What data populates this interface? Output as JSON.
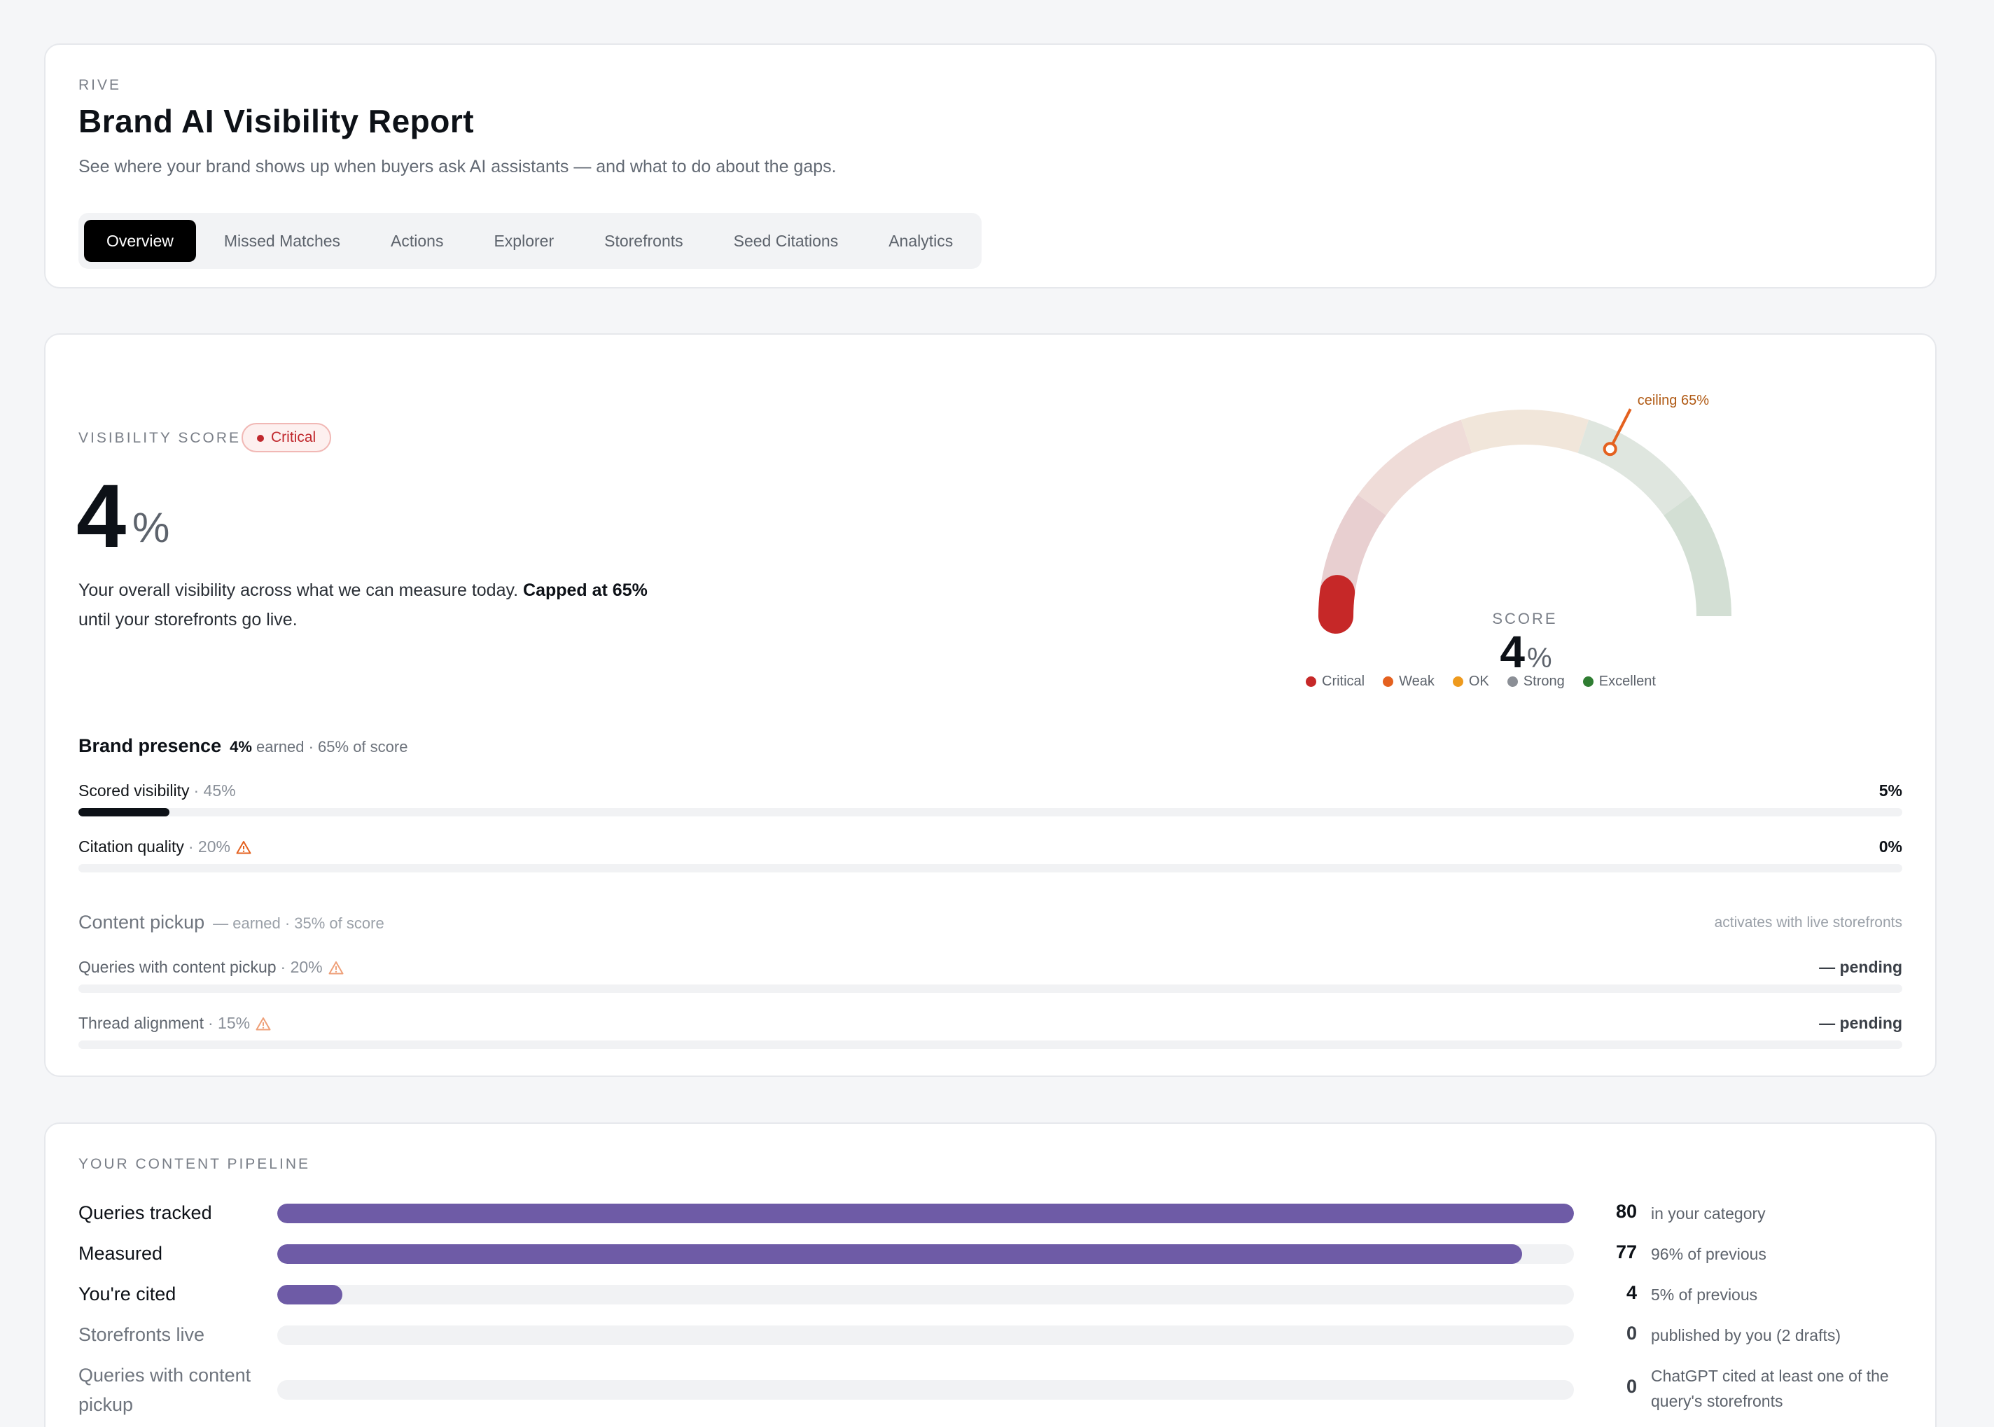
{
  "header": {
    "brand": "RIVE",
    "title": "Brand AI Visibility Report",
    "subtitle": "See where your brand shows up when buyers ask AI assistants — and what to do about the gaps.",
    "tabs": [
      {
        "label": "Overview",
        "active": true
      },
      {
        "label": "Missed Matches",
        "active": false
      },
      {
        "label": "Actions",
        "active": false
      },
      {
        "label": "Explorer",
        "active": false
      },
      {
        "label": "Storefronts",
        "active": false
      },
      {
        "label": "Seed Citations",
        "active": false
      },
      {
        "label": "Analytics",
        "active": false
      }
    ]
  },
  "score": {
    "label": "VISIBILITY SCORE",
    "badge": "Critical",
    "value": "4",
    "unit": "%",
    "desc_pre": "Your overall visibility across what we can measure today. ",
    "desc_bold": "Capped at 65%",
    "desc_post": " until your storefronts go live."
  },
  "gauge": {
    "score_label": "SCORE",
    "value": 4,
    "value_text": "4",
    "unit": "%",
    "ceiling": 65,
    "ceiling_label": "ceiling 65%",
    "legend": [
      {
        "label": "Critical",
        "color": "#c62828"
      },
      {
        "label": "Weak",
        "color": "#e4611f"
      },
      {
        "label": "OK",
        "color": "#ee9a1d"
      },
      {
        "label": "Strong",
        "color": "#8b8f96"
      },
      {
        "label": "Excellent",
        "color": "#2f7d32"
      }
    ]
  },
  "brand_presence": {
    "title": "Brand presence",
    "earned": "4%",
    "meta": " earned · 65% of score",
    "metrics": [
      {
        "label": "Scored visibility",
        "weight": "· 45%",
        "value": "5%",
        "fill": 5,
        "warn": false
      },
      {
        "label": "Citation quality",
        "weight": "· 20%",
        "value": "0%",
        "fill": 0,
        "warn": true
      }
    ]
  },
  "content_pickup": {
    "title": "Content pickup",
    "meta": "— earned · 35% of score",
    "note": "activates with live storefronts",
    "metrics": [
      {
        "label": "Queries with content pickup",
        "weight": "· 20%",
        "value": "— pending",
        "warn": true
      },
      {
        "label": "Thread alignment",
        "weight": "· 15%",
        "value": "— pending",
        "warn": true
      }
    ]
  },
  "pipeline": {
    "label": "YOUR CONTENT PIPELINE",
    "rows": [
      {
        "name": "Queries tracked",
        "count": "80",
        "fill": 100,
        "note": "in your category",
        "muted": false
      },
      {
        "name": "Measured",
        "count": "77",
        "fill": 96,
        "note": "96% of previous",
        "muted": false
      },
      {
        "name": "You're cited",
        "count": "4",
        "fill": 5,
        "note": "5% of previous",
        "muted": false
      },
      {
        "name": "Storefronts live",
        "count": "0",
        "fill": 0,
        "note": "published by you (2 drafts)",
        "muted": true
      },
      {
        "name": "Queries with content pickup",
        "count": "0",
        "fill": 0,
        "note": "ChatGPT cited at least one of the query's storefronts",
        "muted": true
      }
    ]
  }
}
